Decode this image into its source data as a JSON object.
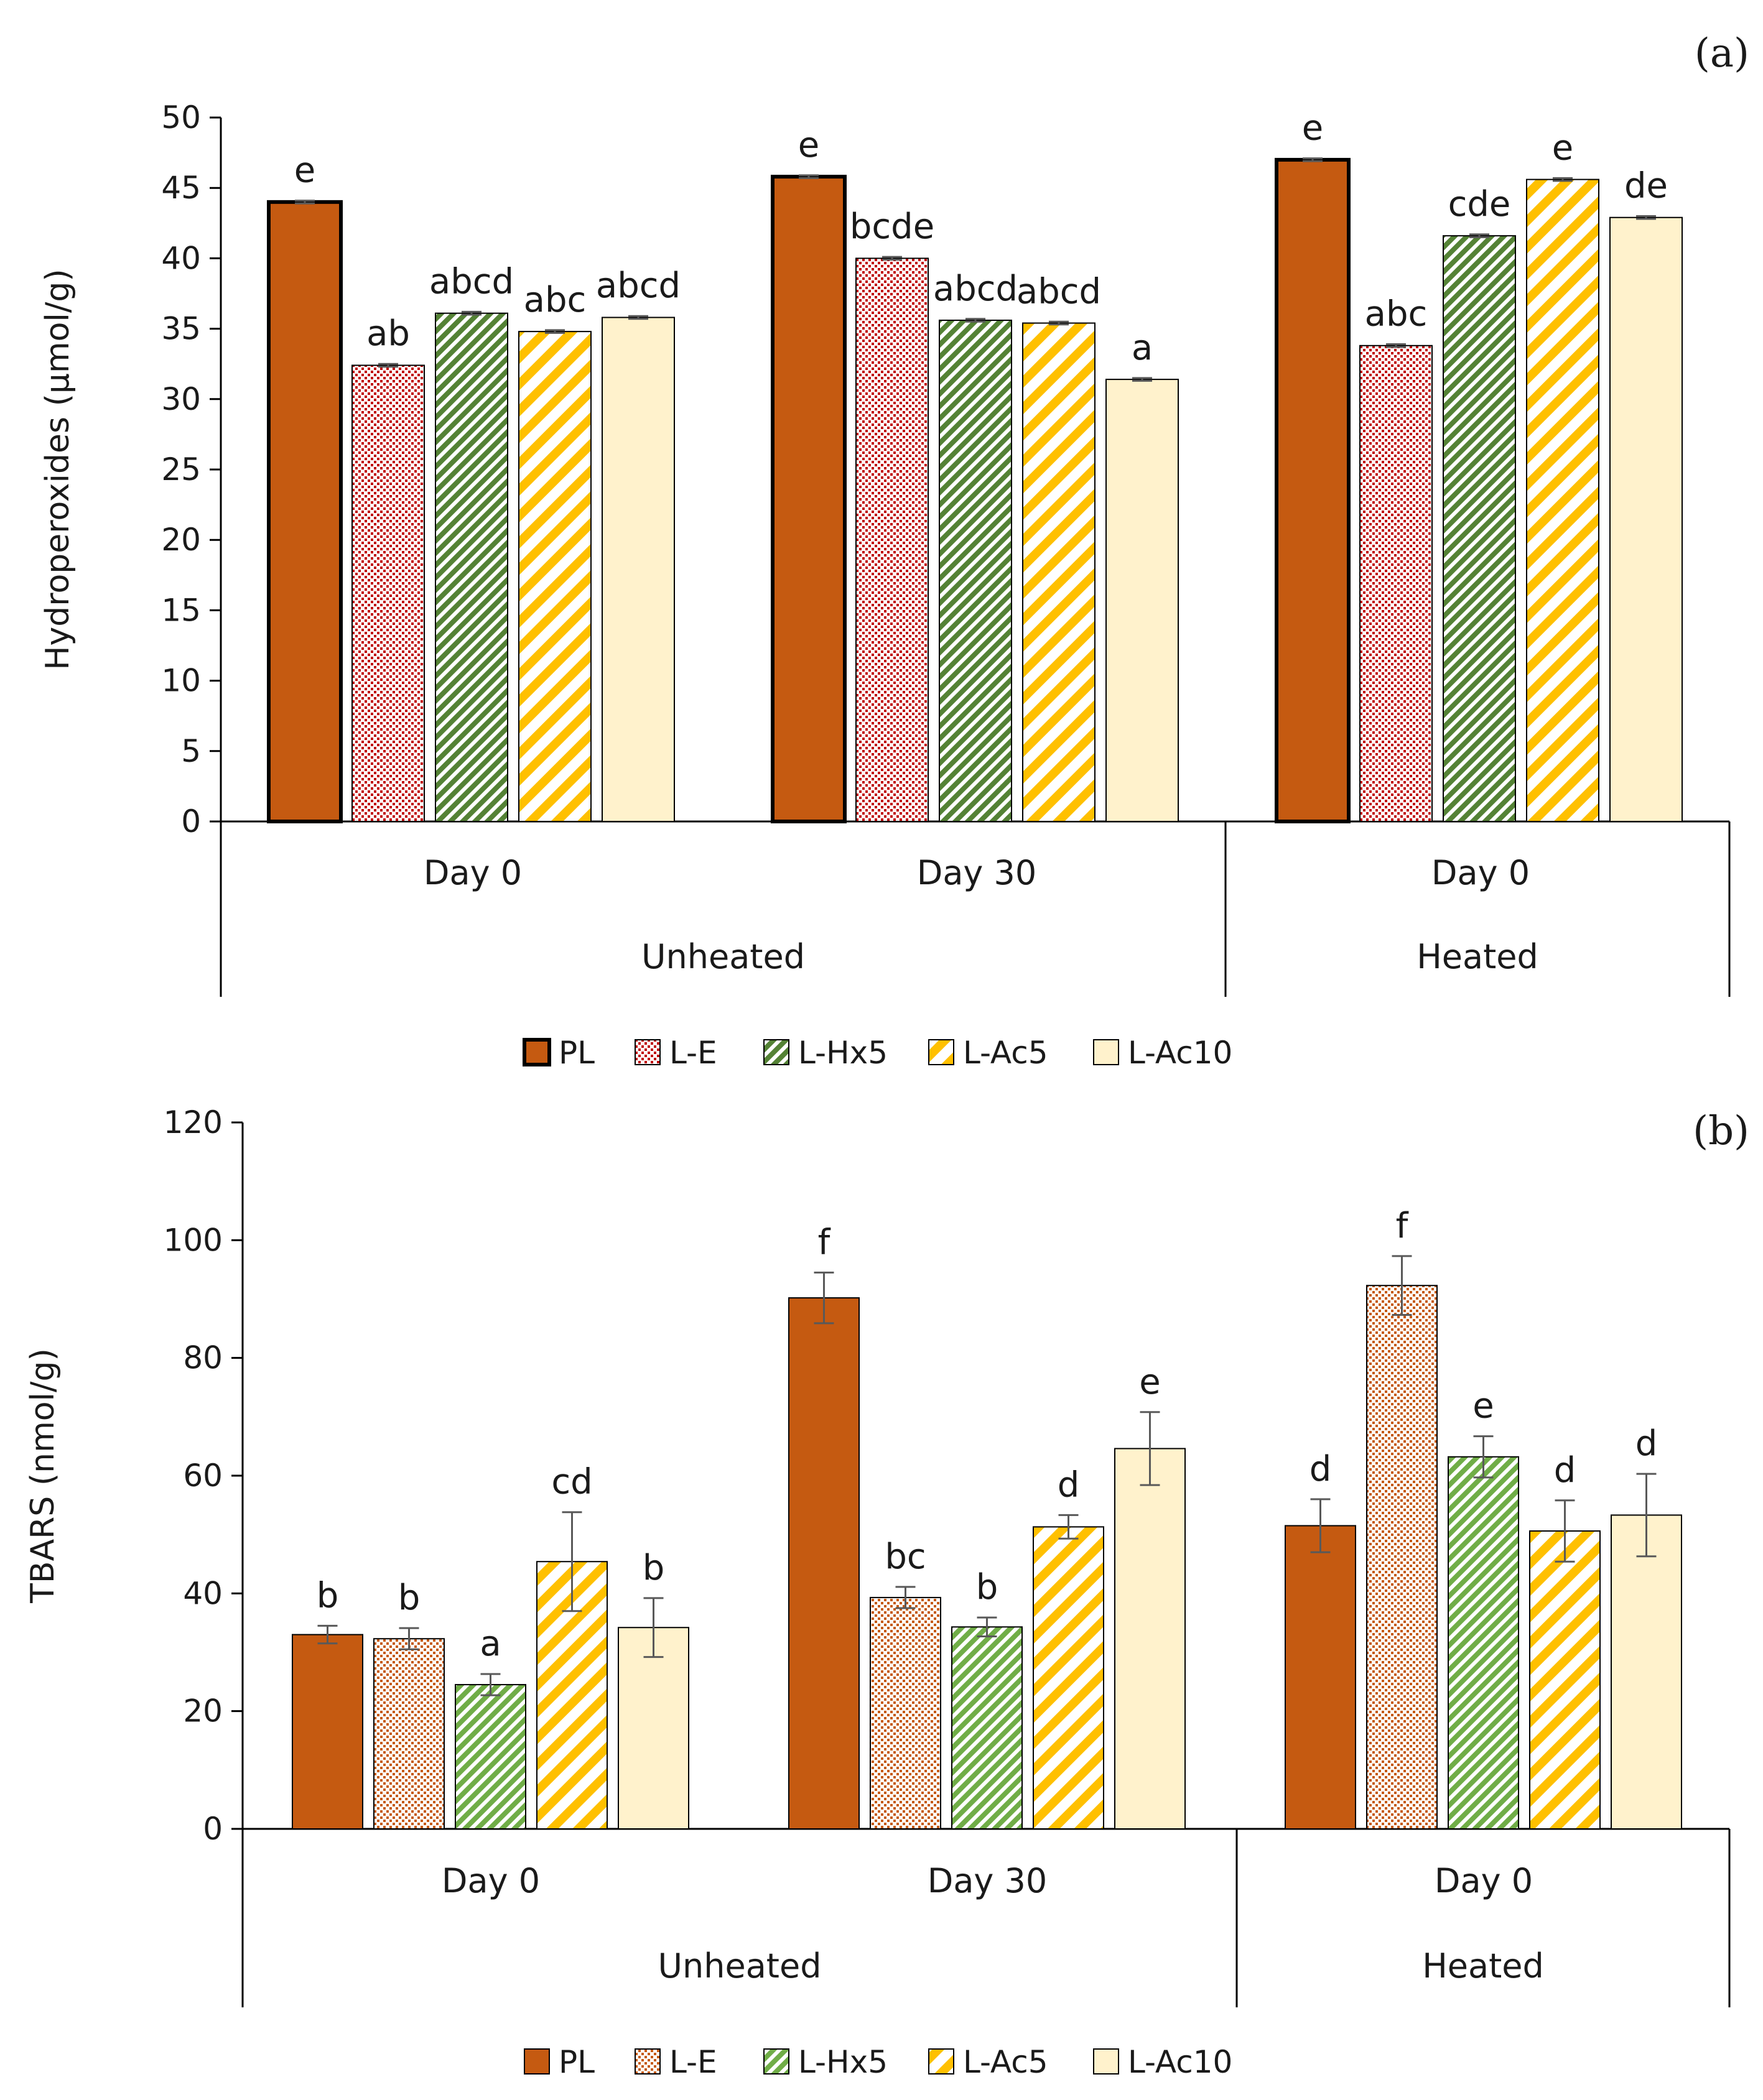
{
  "chart_data": [
    {
      "type": "bar",
      "panel_label": "(a)",
      "ylabel": "Hydroperoxides (µmol/g)",
      "ylim": [
        0,
        50
      ],
      "yticks": [
        "0",
        "5",
        "10",
        "15",
        "20",
        "25",
        "30",
        "35",
        "40",
        "45",
        "50"
      ],
      "categories": [
        "Day 0",
        "Day 30",
        "Day 0"
      ],
      "groups": [
        "Unheated",
        "Heated"
      ],
      "series": [
        {
          "name": "PL",
          "values": [
            44.0,
            45.8,
            47.0
          ],
          "errors": [
            0.1,
            0.1,
            0.1
          ],
          "letters": [
            "e",
            "e",
            "e"
          ]
        },
        {
          "name": "L-E",
          "values": [
            32.4,
            40.0,
            33.8
          ],
          "errors": [
            0.1,
            0.1,
            0.1
          ],
          "letters": [
            "ab",
            "bcde",
            "abc"
          ]
        },
        {
          "name": "L-Hx5",
          "values": [
            36.1,
            35.6,
            41.6
          ],
          "errors": [
            0.1,
            0.1,
            0.1
          ],
          "letters": [
            "abcd",
            "abcd",
            "cde"
          ]
        },
        {
          "name": "L-Ac5",
          "values": [
            34.8,
            35.4,
            45.6
          ],
          "errors": [
            0.1,
            0.1,
            0.1
          ],
          "letters": [
            "abc",
            "abcd",
            "e"
          ]
        },
        {
          "name": "L-Ac10",
          "values": [
            35.8,
            31.4,
            42.9
          ],
          "errors": [
            0.1,
            0.1,
            0.1
          ],
          "letters": [
            "abcd",
            "a",
            "de"
          ]
        }
      ]
    },
    {
      "type": "bar",
      "panel_label": "(b)",
      "ylabel": "TBARS (nmol/g)",
      "ylim": [
        0,
        120
      ],
      "yticks": [
        "0",
        "20",
        "40",
        "60",
        "80",
        "100",
        "120"
      ],
      "categories": [
        "Day 0",
        "Day 30",
        "Day 0"
      ],
      "groups": [
        "Unheated",
        "Heated"
      ],
      "series": [
        {
          "name": "PL",
          "values": [
            33.0,
            90.2,
            51.5
          ],
          "errors": [
            1.5,
            4.3,
            4.5
          ],
          "letters": [
            "b",
            "f",
            "d"
          ]
        },
        {
          "name": "L-E",
          "values": [
            32.3,
            39.3,
            92.3
          ],
          "errors": [
            1.8,
            1.8,
            5.0
          ],
          "letters": [
            "b",
            "bc",
            "f"
          ]
        },
        {
          "name": "L-Hx5",
          "values": [
            24.5,
            34.3,
            63.2
          ],
          "errors": [
            1.8,
            1.6,
            3.5
          ],
          "letters": [
            "a",
            "b",
            "e"
          ]
        },
        {
          "name": "L-Ac5",
          "values": [
            45.4,
            51.3,
            50.6
          ],
          "errors": [
            8.4,
            2.0,
            5.2
          ],
          "letters": [
            "cd",
            "d",
            "d"
          ]
        },
        {
          "name": "L-Ac10",
          "values": [
            34.2,
            64.6,
            53.3
          ],
          "errors": [
            5.0,
            6.2,
            7.0
          ],
          "letters": [
            "b",
            "e",
            "d"
          ]
        }
      ]
    }
  ],
  "colors": {
    "PL": "#c55a11",
    "L-E": "#c00000",
    "L-E_b": "#c55a11",
    "L-Hx5": "#548235",
    "L-Hx5_b": "#70ad47",
    "L-Ac5": "#ffc000",
    "L-Ac10": "#fff2cc",
    "axis": "#000000",
    "errorbar": "#595959"
  }
}
